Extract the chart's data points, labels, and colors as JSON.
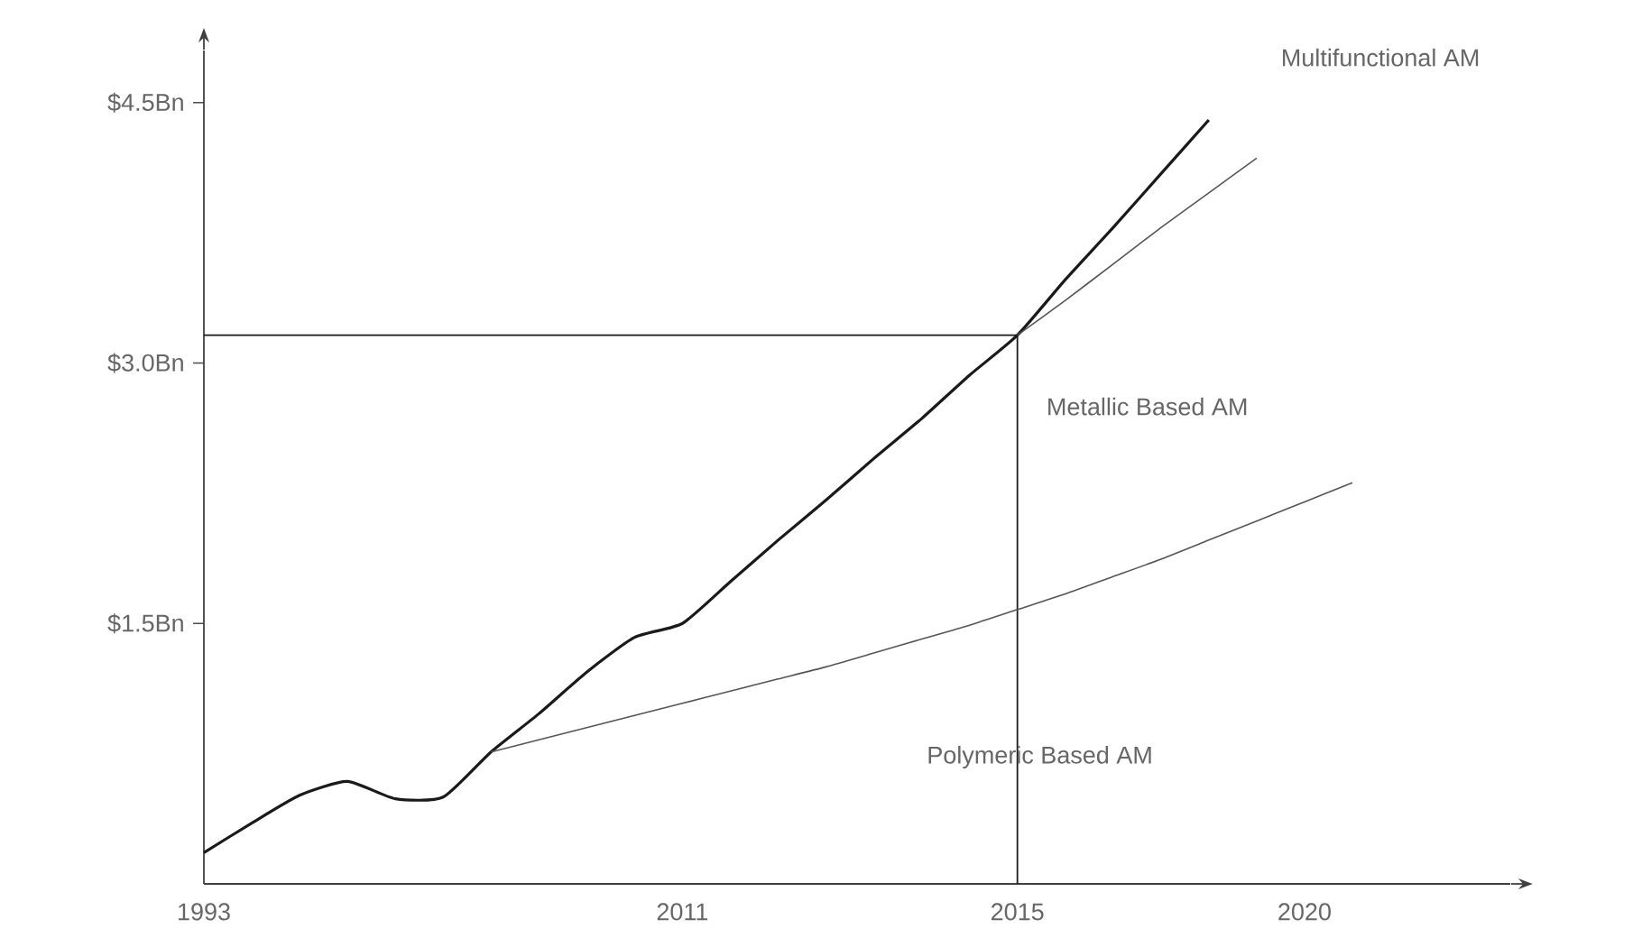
{
  "chart_data": {
    "type": "line",
    "categories": [
      "1993",
      null,
      null,
      null,
      null,
      null,
      null,
      null,
      null,
      null,
      "2011",
      null,
      null,
      null,
      null,
      null,
      null,
      "2015",
      null,
      null,
      null,
      null,
      null,
      "2020",
      null
    ],
    "series": [
      {
        "color": "#1a1a1a",
        "values": [
          0.18,
          0.35,
          0.51,
          0.59,
          0.49,
          0.5,
          0.76,
          0.98,
          1.22,
          1.42,
          1.5,
          1.74,
          1.98,
          2.21,
          2.45,
          2.68,
          2.93,
          3.16,
          3.48,
          3.78,
          4.09,
          4.4,
          null,
          null,
          null
        ]
      },
      {
        "color": "#555555",
        "values": [
          null,
          null,
          null,
          null,
          null,
          null,
          null,
          null,
          null,
          null,
          null,
          null,
          null,
          null,
          null,
          null,
          null,
          3.16,
          3.36,
          3.57,
          3.78,
          3.98,
          4.18,
          null,
          null
        ]
      },
      {
        "color": "#555555",
        "values": [
          null,
          null,
          null,
          null,
          null,
          null,
          0.76,
          0.83,
          0.9,
          0.97,
          1.04,
          1.11,
          1.18,
          1.25,
          1.33,
          1.41,
          1.49,
          1.58,
          1.67,
          1.77,
          1.87,
          1.98,
          2.09,
          2.2,
          2.31
        ]
      }
    ],
    "ylim": [
      0,
      4.8
    ],
    "yticks": [
      {
        "value": 1.5,
        "label": "$1.5Bn"
      },
      {
        "value": 3.0,
        "label": "$3.0Bn"
      },
      {
        "value": 4.5,
        "label": "$4.5Bn"
      }
    ],
    "ref_lines": [
      {
        "axis": "y",
        "value": 3.16,
        "color": "#1a1a1a"
      },
      {
        "axis": "x",
        "value": "2015",
        "color": "#1a1a1a"
      }
    ],
    "annotations": [
      "Multifunctional AM",
      "Metallic Based AM",
      "Polymeric Based AM"
    ]
  }
}
